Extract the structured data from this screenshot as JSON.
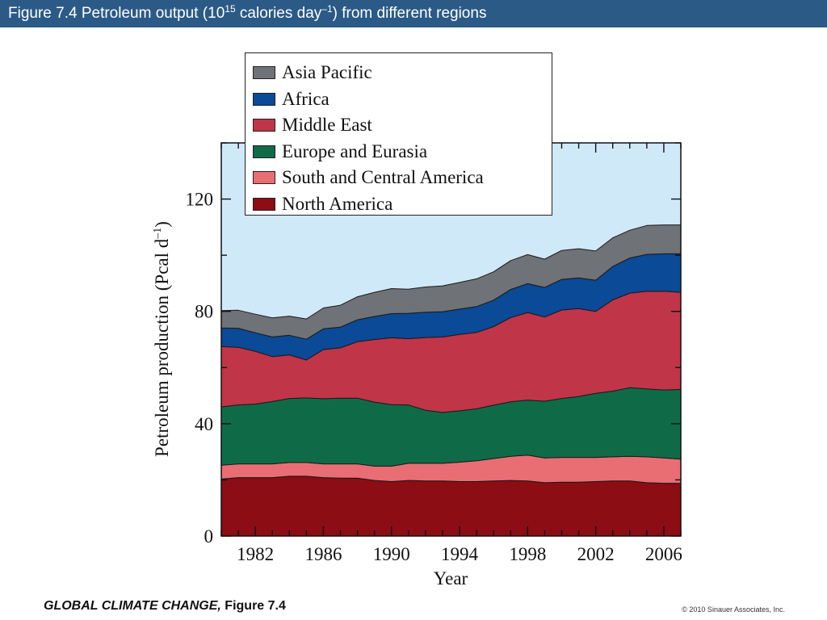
{
  "header": {
    "title_prefix": "Figure 7.4  Petroleum output (10",
    "title_exp": "15",
    "title_mid": " calories day",
    "title_exp2": "–1",
    "title_suffix": ") from different regions"
  },
  "footer": {
    "book_title": "GLOBAL CLIMATE CHANGE,",
    "figure_ref": "Figure 7.4",
    "copyright": "© 2010 Sinauer Associates, Inc."
  },
  "colors": {
    "background": "#cfe9f8",
    "title_bar": "#2b5a86"
  },
  "chart_data": {
    "type": "area",
    "stacked": true,
    "xlabel": "Year",
    "ylabel": "Petroleum production (Pcal d–1)",
    "ylabel_main": "Petroleum production (Pcal d",
    "ylabel_exp": "–1",
    "ylabel_end": ")",
    "xlim": [
      1980,
      2007
    ],
    "ylim": [
      0,
      140
    ],
    "xticks": [
      1982,
      1986,
      1990,
      1994,
      1998,
      2002,
      2006
    ],
    "yticks": [
      0,
      40,
      80,
      120
    ],
    "grid": false,
    "legend_position": "top-center",
    "x": [
      1980,
      1981,
      1982,
      1983,
      1984,
      1985,
      1986,
      1987,
      1988,
      1989,
      1990,
      1991,
      1992,
      1993,
      1994,
      1995,
      1996,
      1997,
      1998,
      1999,
      2000,
      2001,
      2002,
      2003,
      2004,
      2005,
      2006,
      2007
    ],
    "series": [
      {
        "name": "North America",
        "color": "#8c0d14",
        "values": [
          20.3,
          20.8,
          20.8,
          20.8,
          21.3,
          21.3,
          20.8,
          20.6,
          20.6,
          19.8,
          19.4,
          19.8,
          19.6,
          19.6,
          19.4,
          19.4,
          19.6,
          19.8,
          19.6,
          19.0,
          19.2,
          19.2,
          19.4,
          19.6,
          19.6,
          19.0,
          18.8,
          18.8
        ]
      },
      {
        "name": "South and Central America",
        "color": "#e86e74",
        "values": [
          4.9,
          4.9,
          4.9,
          4.9,
          4.9,
          4.9,
          4.9,
          5.1,
          5.1,
          5.1,
          5.5,
          6.1,
          6.3,
          6.3,
          6.9,
          7.4,
          8.0,
          8.6,
          9.2,
          8.8,
          8.8,
          8.8,
          8.6,
          8.6,
          8.8,
          9.2,
          9.0,
          8.6
        ]
      },
      {
        "name": "Europe and Eurasia",
        "color": "#0f6b47",
        "values": [
          20.8,
          21.0,
          21.3,
          22.2,
          22.8,
          23.0,
          23.2,
          23.4,
          23.4,
          22.8,
          21.9,
          20.8,
          18.9,
          18.1,
          18.3,
          18.5,
          19.0,
          19.4,
          19.6,
          20.2,
          21.0,
          21.7,
          22.8,
          23.4,
          24.4,
          24.2,
          24.2,
          24.8
        ]
      },
      {
        "name": "Middle East",
        "color": "#c03548",
        "values": [
          21.5,
          20.5,
          18.8,
          16.0,
          15.5,
          13.5,
          17.5,
          17.9,
          20.1,
          22.3,
          23.8,
          23.6,
          25.9,
          26.9,
          27.2,
          27.2,
          28.0,
          30.0,
          31.2,
          30.0,
          31.5,
          31.3,
          29.2,
          32.5,
          33.7,
          34.8,
          35.2,
          34.6
        ]
      },
      {
        "name": "Africa",
        "color": "#0a4a96",
        "values": [
          6.6,
          6.8,
          6.6,
          7.0,
          7.0,
          7.4,
          7.4,
          7.4,
          7.8,
          8.2,
          8.6,
          9.0,
          9.0,
          9.0,
          9.0,
          9.2,
          9.4,
          10.0,
          10.3,
          10.5,
          10.9,
          10.9,
          11.1,
          11.9,
          12.5,
          13.1,
          13.3,
          13.7
        ]
      },
      {
        "name": "Asia Pacific",
        "color": "#6f7276",
        "values": [
          6.2,
          6.4,
          6.6,
          6.8,
          6.8,
          7.2,
          7.4,
          7.8,
          8.2,
          8.6,
          8.9,
          8.6,
          9.0,
          9.2,
          9.5,
          9.9,
          10.1,
          10.3,
          10.3,
          10.1,
          10.3,
          10.4,
          10.4,
          10.2,
          9.9,
          10.3,
          10.3,
          10.3
        ]
      }
    ]
  }
}
